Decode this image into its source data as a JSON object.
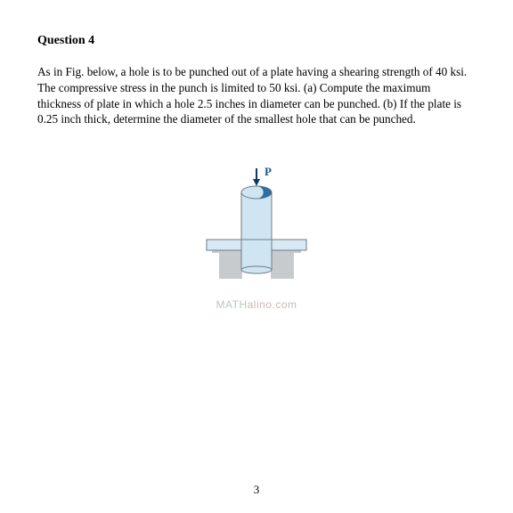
{
  "heading": "Question 4",
  "paragraph": "As in Fig. below, a hole is to be punched out of a plate having a shearing strength of 40 ksi. The compressive stress in the punch is limited to 50 ksi. (a) Compute the maximum thickness of plate in which a hole 2.5 inches in diameter can be punched. (b) If the plate is 0.25 inch thick, determine the diameter of the smallest hole that can be punched.",
  "force_label": "P",
  "watermark_a": "MATH",
  "watermark_b": "alino.com",
  "page_number": "3",
  "figure": {
    "type": "diagram",
    "width": 180,
    "height": 145,
    "background": "#ffffff",
    "stroke": "#707b85",
    "stroke_width": 1,
    "punch_fill": "#cfe6f2",
    "plate_fill": "#d6e9f4",
    "support_fill": "#c7cbce",
    "top_fill_dark": "#2e6ea0",
    "label_color": "#1a5a8a",
    "arrow_color": "#0a3a66",
    "label_fontsize": 13
  }
}
